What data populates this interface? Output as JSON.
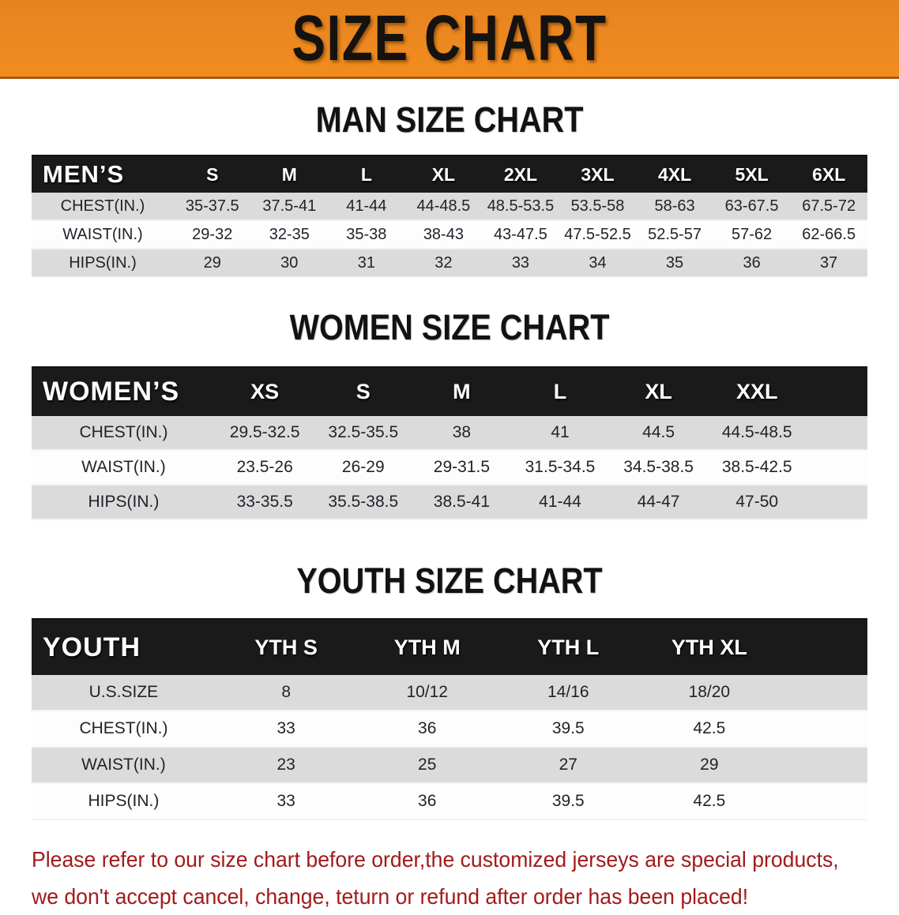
{
  "banner": {
    "title": "SIZE CHART"
  },
  "colors": {
    "banner_orange": "#EE8A20",
    "table_header_black": "#1A1A1A",
    "row_alt_gray": "#DBDBDB",
    "footer_red": "#A31A1A"
  },
  "sections": [
    {
      "heading": "MAN SIZE CHART",
      "table": {
        "corner_label": "MEN’S",
        "columns": [
          "S",
          "M",
          "L",
          "XL",
          "2XL",
          "3XL",
          "4XL",
          "5XL",
          "6XL"
        ],
        "rows": [
          {
            "label": "CHEST(IN.)",
            "values": [
              "35-37.5",
              "37.5-41",
              "41-44",
              "44-48.5",
              "48.5-53.5",
              "53.5-58",
              "58-63",
              "63-67.5",
              "67.5-72"
            ]
          },
          {
            "label": "WAIST(IN.)",
            "values": [
              "29-32",
              "32-35",
              "35-38",
              "38-43",
              "43-47.5",
              "47.5-52.5",
              "52.5-57",
              "57-62",
              "62-66.5"
            ]
          },
          {
            "label": "HIPS(IN.)",
            "values": [
              "29",
              "30",
              "31",
              "32",
              "33",
              "34",
              "35",
              "36",
              "37"
            ]
          }
        ]
      }
    },
    {
      "heading": "WOMEN SIZE CHART",
      "table": {
        "corner_label": "WOMEN’S",
        "columns": [
          "XS",
          "S",
          "M",
          "L",
          "XL",
          "XXL"
        ],
        "rows": [
          {
            "label": "CHEST(IN.)",
            "values": [
              "29.5-32.5",
              "32.5-35.5",
              "38",
              "41",
              "44.5",
              "44.5-48.5"
            ]
          },
          {
            "label": "WAIST(IN.)",
            "values": [
              "23.5-26",
              "26-29",
              "29-31.5",
              "31.5-34.5",
              "34.5-38.5",
              "38.5-42.5"
            ]
          },
          {
            "label": "HIPS(IN.)",
            "values": [
              "33-35.5",
              "35.5-38.5",
              "38.5-41",
              "41-44",
              "44-47",
              "47-50"
            ]
          }
        ]
      }
    },
    {
      "heading": "YOUTH SIZE CHART",
      "table": {
        "corner_label": "YOUTH",
        "columns": [
          "YTH S",
          "YTH M",
          "YTH L",
          "YTH XL"
        ],
        "rows": [
          {
            "label": "U.S.SIZE",
            "values": [
              "8",
              "10/12",
              "14/16",
              "18/20"
            ]
          },
          {
            "label": "CHEST(IN.)",
            "values": [
              "33",
              "36",
              "39.5",
              "42.5"
            ]
          },
          {
            "label": "WAIST(IN.)",
            "values": [
              "23",
              "25",
              "27",
              "29"
            ]
          },
          {
            "label": "HIPS(IN.)",
            "values": [
              "33",
              "36",
              "39.5",
              "42.5"
            ]
          }
        ]
      }
    }
  ],
  "footer": {
    "line1": "Please refer to our size chart before order,the customized jerseys are special products,",
    "line2": "we don't accept cancel, change, teturn or refund after order has been placed!"
  }
}
